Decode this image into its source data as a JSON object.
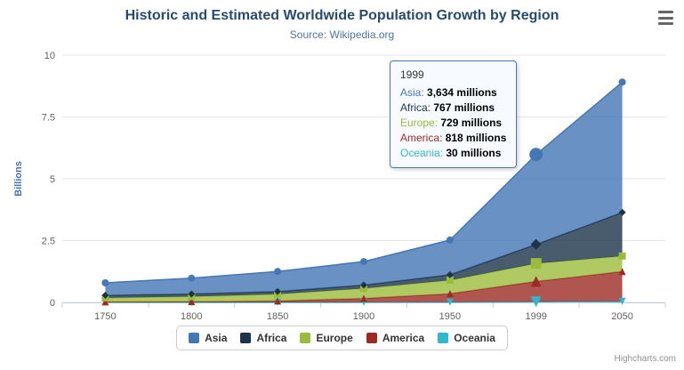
{
  "theme": {
    "background": "#FFFFFF",
    "title_color": "#274B6D",
    "subtitle_color": "#4D759E",
    "axis_label_color": "#606060",
    "yaxis_title_color": "#4572A7",
    "grid_color": "#E6E6E6",
    "axis_line_color": "#C0D0E0",
    "legend_border_color": "#CBCBCB",
    "legend_text_color": "#333333",
    "credits_color": "#909090",
    "tooltip_bg": "#F7FBFF",
    "tooltip_value_color": "#000000"
  },
  "chart_data": {
    "type": "area",
    "stacking": "normal",
    "title": "Historic and Estimated Worldwide Population Growth by Region",
    "subtitle": "Source: Wikipedia.org",
    "categories": [
      "1750",
      "1800",
      "1850",
      "1900",
      "1950",
      "1999",
      "2050"
    ],
    "xlabel": "",
    "ylabel": "Billions",
    "ylim": [
      0,
      10
    ],
    "yticks": [
      0,
      2.5,
      5,
      7.5,
      10
    ],
    "ytick_labels": [
      "0",
      "2.5",
      "5",
      "7.5",
      "10"
    ],
    "values_unit": "millions",
    "legend_position": "bottom",
    "grid": true,
    "series": [
      {
        "name": "Asia",
        "color": "#4576B5",
        "marker": "circle",
        "values": [
          502,
          635,
          809,
          947,
          1402,
          3634,
          5268
        ]
      },
      {
        "name": "Africa",
        "color": "#1C334A",
        "marker": "diamond",
        "values": [
          106,
          107,
          111,
          133,
          221,
          767,
          1766
        ]
      },
      {
        "name": "Europe",
        "color": "#9BBB3C",
        "marker": "square",
        "values": [
          163,
          203,
          276,
          408,
          547,
          729,
          628
        ]
      },
      {
        "name": "America",
        "color": "#9E2A25",
        "marker": "triangle",
        "values": [
          18,
          31,
          54,
          156,
          339,
          818,
          1201
        ]
      },
      {
        "name": "Oceania",
        "color": "#2FB8CC",
        "marker": "triangle-down",
        "values": [
          2,
          2,
          2,
          6,
          13,
          30,
          46
        ]
      }
    ]
  },
  "tooltip": {
    "header": "1999",
    "hover_category_index": 5,
    "rows": [
      {
        "label": "Asia:",
        "value": "3,634 millions"
      },
      {
        "label": "Africa:",
        "value": "767 millions"
      },
      {
        "label": "Europe:",
        "value": "729 millions"
      },
      {
        "label": "America:",
        "value": "818 millions"
      },
      {
        "label": "Oceania:",
        "value": "30 millions"
      }
    ]
  },
  "credits": "Highcharts.com"
}
